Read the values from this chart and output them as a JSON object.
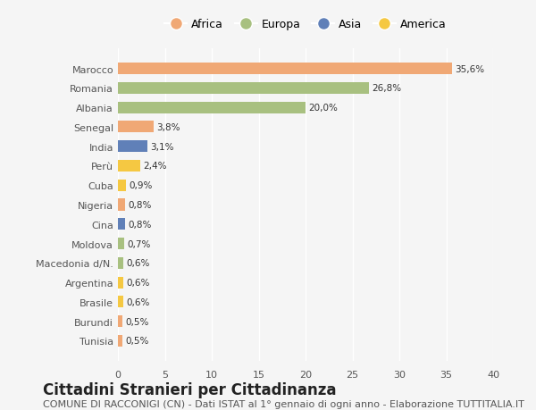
{
  "countries": [
    "Marocco",
    "Romania",
    "Albania",
    "Senegal",
    "India",
    "Perù",
    "Cuba",
    "Nigeria",
    "Cina",
    "Moldova",
    "Macedonia d/N.",
    "Argentina",
    "Brasile",
    "Burundi",
    "Tunisia"
  ],
  "values": [
    35.6,
    26.8,
    20.0,
    3.8,
    3.1,
    2.4,
    0.9,
    0.8,
    0.8,
    0.7,
    0.6,
    0.6,
    0.6,
    0.5,
    0.5
  ],
  "labels": [
    "35,6%",
    "26,8%",
    "20,0%",
    "3,8%",
    "3,1%",
    "2,4%",
    "0,9%",
    "0,8%",
    "0,8%",
    "0,7%",
    "0,6%",
    "0,6%",
    "0,6%",
    "0,5%",
    "0,5%"
  ],
  "colors": [
    "#F0A875",
    "#A8C080",
    "#A8C080",
    "#F0A875",
    "#6080B8",
    "#F5C842",
    "#F5C842",
    "#F0A875",
    "#6080B8",
    "#A8C080",
    "#A8C080",
    "#F5C842",
    "#F5C842",
    "#F0A875",
    "#F0A875"
  ],
  "legend_labels": [
    "Africa",
    "Europa",
    "Asia",
    "America"
  ],
  "legend_colors": [
    "#F0A875",
    "#A8C080",
    "#6080B8",
    "#F5C842"
  ],
  "title": "Cittadini Stranieri per Cittadinanza",
  "subtitle": "COMUNE DI RACCONIGI (CN) - Dati ISTAT al 1° gennaio di ogni anno - Elaborazione TUTTITALIA.IT",
  "xlim": [
    0,
    40
  ],
  "xticks": [
    0,
    5,
    10,
    15,
    20,
    25,
    30,
    35,
    40
  ],
  "bg_color": "#f5f5f5",
  "bar_height": 0.6,
  "title_fontsize": 12,
  "subtitle_fontsize": 8
}
